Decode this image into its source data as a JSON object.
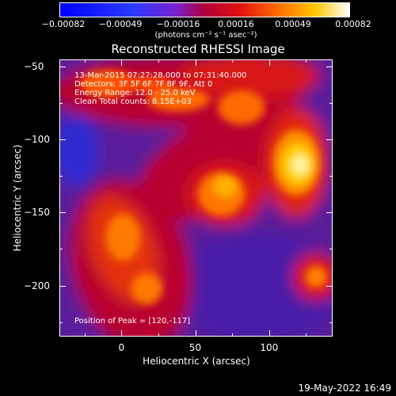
{
  "colorbar": {
    "ticks": [
      "-0.00082",
      "-0.00049",
      "-0.00016",
      "0.00016",
      "0.00049",
      "0.00082"
    ],
    "unit": "(photons cm⁻² s⁻¹ asec⁻²)"
  },
  "chart_data": {
    "type": "heatmap",
    "title": "Reconstructed RHESSI Image",
    "xlabel": "Heliocentric X (arcsec)",
    "ylabel": "Heliocentric Y (arcsec)",
    "xlim": [
      -42,
      143
    ],
    "ylim": [
      -235,
      -45
    ],
    "xticks": [
      0,
      50,
      100
    ],
    "yticks": [
      -50,
      -100,
      -150,
      -200
    ],
    "colorbar_range": [
      -0.00082,
      0.00082
    ],
    "colormap": "blue-purple-red-yellow-white",
    "annotations": [
      "13-Mar-2015 07:27:28.000 to 07:31:40.000",
      "Detectors: 3F 5F 6F 7F 8F 9F, Att 0",
      "Energy Range: 12.0 - 25.0 keV",
      "Clean    Total counts: 8.15E+03"
    ],
    "peak_label": "Position of Peak = [120,-117]",
    "peak": [
      120,
      -117
    ]
  },
  "footer": {
    "date": "19-May-2022 16:49"
  }
}
